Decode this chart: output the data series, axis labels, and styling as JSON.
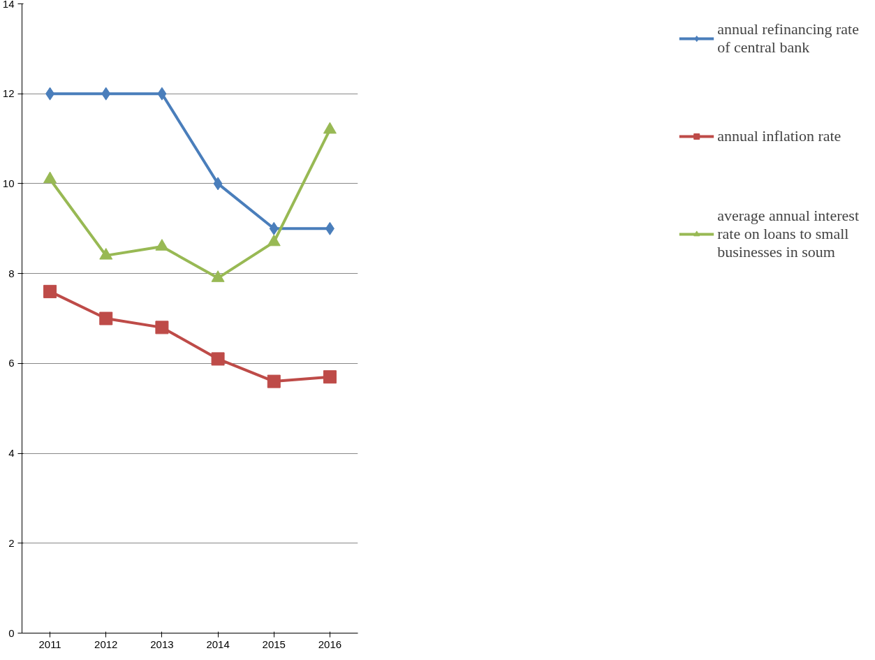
{
  "chart_data": {
    "type": "line",
    "categories": [
      "2011",
      "2012",
      "2013",
      "2014",
      "2015",
      "2016"
    ],
    "series": [
      {
        "name": "annual refinancing rate of central bank",
        "color": "#4a7ebb",
        "marker": "diamond",
        "values": [
          12,
          12,
          12,
          10,
          9,
          9
        ]
      },
      {
        "name": "annual inflation rate",
        "color": "#be4b48",
        "marker": "square",
        "values": [
          7.6,
          7.0,
          6.8,
          6.1,
          5.6,
          5.7
        ]
      },
      {
        "name": "average annual interest rate on loans to small businesses in soum",
        "color": "#98b954",
        "marker": "triangle",
        "values": [
          10.1,
          8.4,
          8.6,
          7.9,
          8.7,
          11.2
        ]
      }
    ],
    "ylim": [
      0,
      14
    ],
    "yticks": [
      0,
      2,
      4,
      6,
      8,
      10,
      12,
      14
    ],
    "grid": "y",
    "legend": "right",
    "line_style": "solid"
  }
}
